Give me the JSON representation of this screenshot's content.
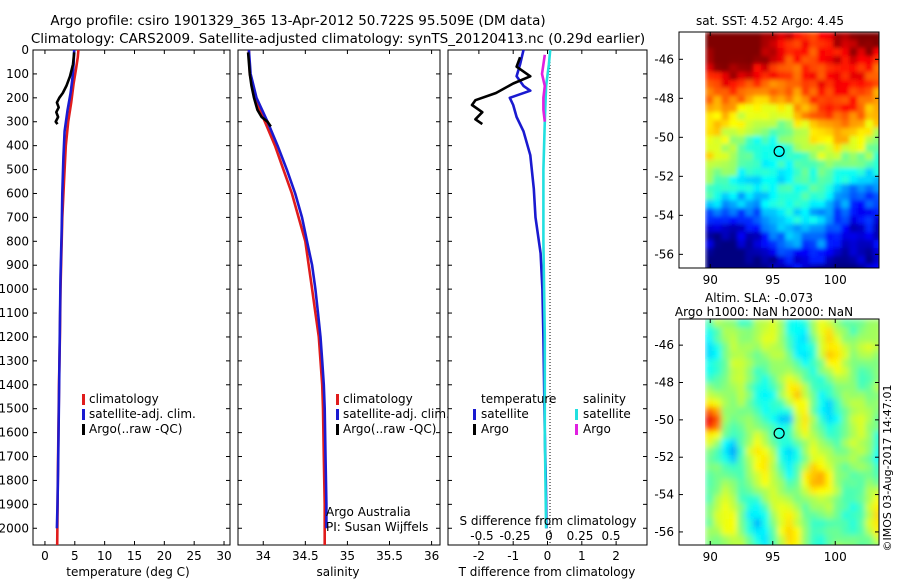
{
  "header": {
    "title_line1": "Argo profile: csiro 1901329_365 13-Apr-2012 50.722S 95.509E (DM data)",
    "title_line2": "Climatology: CARS2009. Satellite-adjusted climatology: synTS_20120413.nc (0.29d earlier)"
  },
  "depth_axis": {
    "ticks": [
      0,
      100,
      200,
      300,
      400,
      500,
      600,
      700,
      800,
      900,
      1000,
      1100,
      1200,
      1300,
      1400,
      1500,
      1600,
      1700,
      1800,
      1900,
      2000
    ],
    "range": [
      0,
      2070
    ],
    "inverted": true
  },
  "colors": {
    "climatology": "#e01c1c",
    "satellite": "#1a1ad0",
    "argo": "#000000",
    "satellite_salinity": "#22e0e0",
    "argo_salinity": "#e020e0"
  },
  "chart_data": [
    {
      "type": "line",
      "panel": "temperature",
      "xlabel": "temperature (deg C)",
      "xticks": [
        0,
        5,
        10,
        15,
        20,
        25,
        30
      ],
      "xlim": [
        -2,
        31
      ],
      "legend": [
        {
          "label": "climatology",
          "color": "#e01c1c"
        },
        {
          "label": "satellite-adj. clim.",
          "color": "#1a1ad0"
        },
        {
          "label": "Argo(..raw -QC)",
          "color": "#000000"
        }
      ],
      "series": [
        {
          "name": "climatology",
          "color": "#e01c1c",
          "points": [
            [
              5.6,
              0
            ],
            [
              5.5,
              30
            ],
            [
              5.2,
              80
            ],
            [
              4.8,
              140
            ],
            [
              4.4,
              220
            ],
            [
              3.9,
              300
            ],
            [
              3.5,
              400
            ],
            [
              3.2,
              550
            ],
            [
              2.9,
              700
            ],
            [
              2.8,
              800
            ],
            [
              2.6,
              1000
            ],
            [
              2.5,
              1200
            ],
            [
              2.35,
              1400
            ],
            [
              2.25,
              1600
            ],
            [
              2.15,
              1800
            ],
            [
              2.1,
              1950
            ],
            [
              2.05,
              2070
            ]
          ]
        },
        {
          "name": "satellite-adj. clim.",
          "color": "#1a1ad0",
          "points": [
            [
              4.9,
              0
            ],
            [
              4.8,
              60
            ],
            [
              4.6,
              120
            ],
            [
              4.3,
              180
            ],
            [
              3.8,
              250
            ],
            [
              3.3,
              340
            ],
            [
              3.1,
              450
            ],
            [
              2.9,
              600
            ],
            [
              2.8,
              750
            ],
            [
              2.6,
              950
            ],
            [
              2.5,
              1150
            ],
            [
              2.4,
              1350
            ],
            [
              2.3,
              1550
            ],
            [
              2.2,
              1750
            ],
            [
              2.1,
              1900
            ],
            [
              2.0,
              2000
            ]
          ]
        },
        {
          "name": "Argo(..raw -QC)",
          "color": "#000000",
          "points": [
            [
              4.9,
              10
            ],
            [
              4.7,
              60
            ],
            [
              4.2,
              110
            ],
            [
              3.6,
              150
            ],
            [
              3.0,
              180
            ],
            [
              2.4,
              200
            ],
            [
              2.0,
              220
            ],
            [
              2.3,
              240
            ],
            [
              1.9,
              260
            ],
            [
              2.2,
              280
            ],
            [
              1.8,
              300
            ],
            [
              2.1,
              310
            ]
          ]
        }
      ]
    },
    {
      "type": "line",
      "panel": "salinity",
      "xlabel": "salinity",
      "xticks": [
        "34",
        "34.5",
        "35",
        "35.5",
        "36"
      ],
      "xtick_values": [
        34,
        34.5,
        35,
        35.5,
        36
      ],
      "xlim": [
        33.7,
        36.1
      ],
      "legend": [
        {
          "label": "climatology",
          "color": "#e01c1c"
        },
        {
          "label": "satellite-adj. clim.",
          "color": "#1a1ad0"
        },
        {
          "label": "Argo(..raw -QC)",
          "color": "#000000"
        }
      ],
      "annotation": [
        "Argo Australia",
        "PI: Susan Wijffels"
      ],
      "series": [
        {
          "name": "climatology",
          "color": "#e01c1c",
          "points": [
            [
              33.83,
              0
            ],
            [
              33.84,
              100
            ],
            [
              33.9,
              200
            ],
            [
              34.02,
              300
            ],
            [
              34.14,
              400
            ],
            [
              34.24,
              500
            ],
            [
              34.34,
              600
            ],
            [
              34.42,
              700
            ],
            [
              34.5,
              800
            ],
            [
              34.54,
              900
            ],
            [
              34.58,
              1000
            ],
            [
              34.62,
              1100
            ],
            [
              34.66,
              1200
            ],
            [
              34.68,
              1300
            ],
            [
              34.7,
              1400
            ],
            [
              34.71,
              1500
            ],
            [
              34.72,
              1700
            ],
            [
              34.73,
              1900
            ],
            [
              34.73,
              2070
            ]
          ]
        },
        {
          "name": "satellite-adj. clim.",
          "color": "#1a1ad0",
          "points": [
            [
              33.83,
              0
            ],
            [
              33.85,
              100
            ],
            [
              33.92,
              200
            ],
            [
              34.05,
              300
            ],
            [
              34.17,
              400
            ],
            [
              34.28,
              500
            ],
            [
              34.38,
              600
            ],
            [
              34.46,
              700
            ],
            [
              34.52,
              800
            ],
            [
              34.58,
              900
            ],
            [
              34.62,
              1000
            ],
            [
              34.65,
              1100
            ],
            [
              34.68,
              1200
            ],
            [
              34.7,
              1300
            ],
            [
              34.72,
              1400
            ],
            [
              34.73,
              1500
            ],
            [
              34.74,
              1700
            ],
            [
              34.75,
              1900
            ],
            [
              34.75,
              2000
            ]
          ]
        },
        {
          "name": "Argo(..raw -QC)",
          "color": "#000000",
          "points": [
            [
              33.82,
              10
            ],
            [
              33.84,
              100
            ],
            [
              33.86,
              150
            ],
            [
              33.89,
              200
            ],
            [
              33.93,
              250
            ],
            [
              33.98,
              280
            ],
            [
              34.05,
              300
            ],
            [
              34.09,
              320
            ]
          ]
        }
      ]
    },
    {
      "type": "line",
      "panel": "differences",
      "xlabel_top": "S difference from climatology",
      "xticks_top": [
        "-0.5",
        "-0.25",
        "0",
        "0.25",
        "0.5"
      ],
      "xlabel": "T difference from climatology",
      "xticks": [
        "-2",
        "-1",
        "0",
        "1",
        "2"
      ],
      "xlim": [
        -2.9,
        2.9
      ],
      "legend": [
        {
          "group": "temperature",
          "label": "satellite",
          "color": "#1a1ad0"
        },
        {
          "group": "temperature",
          "label": "Argo",
          "color": "#000000"
        },
        {
          "group": "salinity",
          "label": "satellite",
          "color": "#22e0e0"
        },
        {
          "group": "salinity",
          "label": "Argo",
          "color": "#e020e0"
        }
      ],
      "series": [
        {
          "name": "satellite",
          "group": "temperature",
          "color": "#1a1ad0",
          "points": [
            [
              -0.7,
              0
            ],
            [
              -0.8,
              60
            ],
            [
              -0.9,
              110
            ],
            [
              -0.7,
              150
            ],
            [
              -0.5,
              170
            ],
            [
              -1.1,
              200
            ],
            [
              -1.0,
              230
            ],
            [
              -0.9,
              280
            ],
            [
              -0.7,
              340
            ],
            [
              -0.5,
              440
            ],
            [
              -0.4,
              580
            ],
            [
              -0.35,
              700
            ],
            [
              -0.2,
              850
            ],
            [
              -0.15,
              1000
            ],
            [
              -0.12,
              1200
            ],
            [
              -0.1,
              1400
            ],
            [
              -0.08,
              1600
            ],
            [
              -0.05,
              1800
            ],
            [
              -0.03,
              2000
            ]
          ]
        },
        {
          "name": "Argo",
          "group": "temperature",
          "color": "#000000",
          "points": [
            [
              -0.8,
              30
            ],
            [
              -0.9,
              70
            ],
            [
              -0.5,
              110
            ],
            [
              -1.0,
              140
            ],
            [
              -1.5,
              180
            ],
            [
              -2.1,
              210
            ],
            [
              -2.2,
              230
            ],
            [
              -1.9,
              260
            ],
            [
              -2.1,
              290
            ],
            [
              -1.9,
              310
            ]
          ]
        },
        {
          "name": "satellite",
          "group": "salinity",
          "color": "#22e0e0",
          "points": [
            [
              0.02,
              0
            ],
            [
              0.01,
              60
            ],
            [
              -0.01,
              150
            ],
            [
              -0.02,
              300
            ],
            [
              -0.03,
              500
            ],
            [
              -0.03,
              800
            ],
            [
              -0.02,
              1200
            ],
            [
              -0.02,
              1600
            ],
            [
              -0.01,
              2000
            ]
          ]
        },
        {
          "name": "Argo",
          "group": "salinity",
          "color": "#e020e0",
          "points": [
            [
              -0.02,
              20
            ],
            [
              -0.04,
              100
            ],
            [
              -0.02,
              150
            ],
            [
              -0.03,
              200
            ],
            [
              -0.03,
              250
            ],
            [
              -0.02,
              300
            ]
          ]
        }
      ]
    },
    {
      "type": "heatmap",
      "panel": "sst_map",
      "title": "sat. SST: 4.52 Argo: 4.45",
      "xticks": [
        "90",
        "95",
        "100"
      ],
      "xtick_values": [
        90,
        95,
        100
      ],
      "yticks": [
        "-46",
        "-48",
        "-50",
        "-52",
        "-54",
        "-56"
      ],
      "ytick_values": [
        -46,
        -48,
        -50,
        -52,
        -54,
        -56
      ],
      "xlim": [
        87.5,
        103.5
      ],
      "ylim": [
        -56.7,
        -44.6
      ],
      "marker": {
        "lon": 95.51,
        "lat": -50.72
      }
    },
    {
      "type": "heatmap",
      "panel": "sla_map",
      "title_line1": "Altim. SLA: -0.073",
      "title_line2": "Argo h1000: NaN h2000: NaN",
      "xticks": [
        "90",
        "95",
        "100"
      ],
      "xtick_values": [
        90,
        95,
        100
      ],
      "yticks": [
        "-46",
        "-48",
        "-50",
        "-52",
        "-54",
        "-56"
      ],
      "ytick_values": [
        -46,
        -48,
        -50,
        -52,
        -54,
        -56
      ],
      "xlim": [
        87.5,
        103.5
      ],
      "ylim": [
        -56.7,
        -44.6
      ],
      "marker": {
        "lon": 95.51,
        "lat": -50.72
      }
    }
  ],
  "watermark": "©IMOS 03-Aug-2017 14:47:01"
}
